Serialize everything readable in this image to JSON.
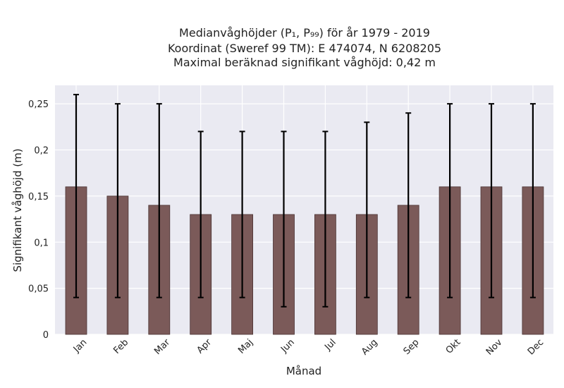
{
  "chart_data": {
    "type": "bar",
    "title_lines": [
      "Medianvåghöjder (P₁, P₉₉) för år 1979 - 2019",
      "Koordinat (Sweref 99 TM): E 474074, N 6208205",
      "Maximal beräknad signifikant våghöjd: 0,42 m"
    ],
    "xlabel": "Månad",
    "ylabel": "Signifikant våghöjd (m)",
    "categories": [
      "Jan",
      "Feb",
      "Mar",
      "Apr",
      "Maj",
      "Jun",
      "Jul",
      "Aug",
      "Sep",
      "Okt",
      "Nov",
      "Dec"
    ],
    "values": [
      0.16,
      0.15,
      0.14,
      0.13,
      0.13,
      0.13,
      0.13,
      0.13,
      0.14,
      0.16,
      0.16,
      0.16
    ],
    "error_low": [
      0.04,
      0.04,
      0.04,
      0.04,
      0.04,
      0.03,
      0.03,
      0.04,
      0.04,
      0.04,
      0.04,
      0.04
    ],
    "error_high": [
      0.26,
      0.25,
      0.25,
      0.22,
      0.22,
      0.22,
      0.22,
      0.23,
      0.24,
      0.25,
      0.25,
      0.25
    ],
    "ylim": [
      0,
      0.27
    ],
    "yticks": [
      0,
      0.05,
      0.1,
      0.15,
      0.2,
      0.25
    ],
    "ytick_labels": [
      "0",
      "0,05",
      "0,1",
      "0,15",
      "0,2",
      "0,25"
    ],
    "grid": true,
    "colors": {
      "bar": "#7b5a59",
      "bar_edge": "#4a3333",
      "plot_bg": "#eaeaf2",
      "grid": "#ffffff",
      "error": "#000000"
    }
  }
}
